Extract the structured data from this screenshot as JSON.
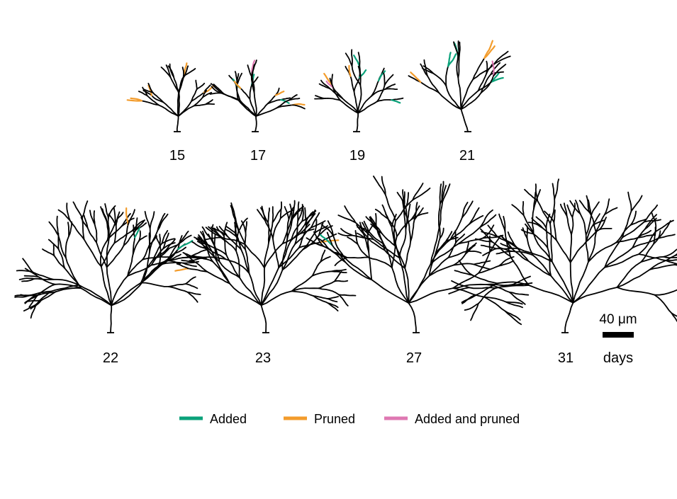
{
  "panels": [
    {
      "id": "d15",
      "day_label": "15",
      "size": 1.0,
      "seed": 11,
      "added": 0,
      "pruned": 5,
      "both": 0
    },
    {
      "id": "d17",
      "day_label": "17",
      "size": 1.0,
      "seed": 23,
      "added": 3,
      "pruned": 3,
      "both": 4
    },
    {
      "id": "d19",
      "day_label": "19",
      "size": 1.2,
      "seed": 37,
      "added": 5,
      "pruned": 2,
      "both": 2
    },
    {
      "id": "d21",
      "day_label": "21",
      "size": 1.5,
      "seed": 41,
      "added": 5,
      "pruned": 3,
      "both": 1
    },
    {
      "id": "d22",
      "day_label": "22",
      "size": 1.75,
      "seed": 53,
      "added": 2,
      "pruned": 1,
      "both": 0
    },
    {
      "id": "d23",
      "day_label": "23",
      "size": 1.8,
      "seed": 67,
      "added": 0,
      "pruned": 2,
      "both": 0
    },
    {
      "id": "d27",
      "day_label": "27",
      "size": 2.0,
      "seed": 71,
      "added": 1,
      "pruned": 0,
      "both": 0
    },
    {
      "id": "d31",
      "day_label": "31",
      "size": 2.0,
      "seed": 89,
      "added": 0,
      "pruned": 0,
      "both": 0
    }
  ],
  "scale_bar": {
    "label": "40 μm",
    "unit_label": "days"
  },
  "legend": [
    {
      "id": "added",
      "label": "Added",
      "color": "#0aa27a"
    },
    {
      "id": "pruned",
      "label": "Pruned",
      "color": "#f39c2c"
    },
    {
      "id": "both",
      "label": "Added and pruned",
      "color": "#df78b2"
    }
  ],
  "dendrite_color": "#000000"
}
